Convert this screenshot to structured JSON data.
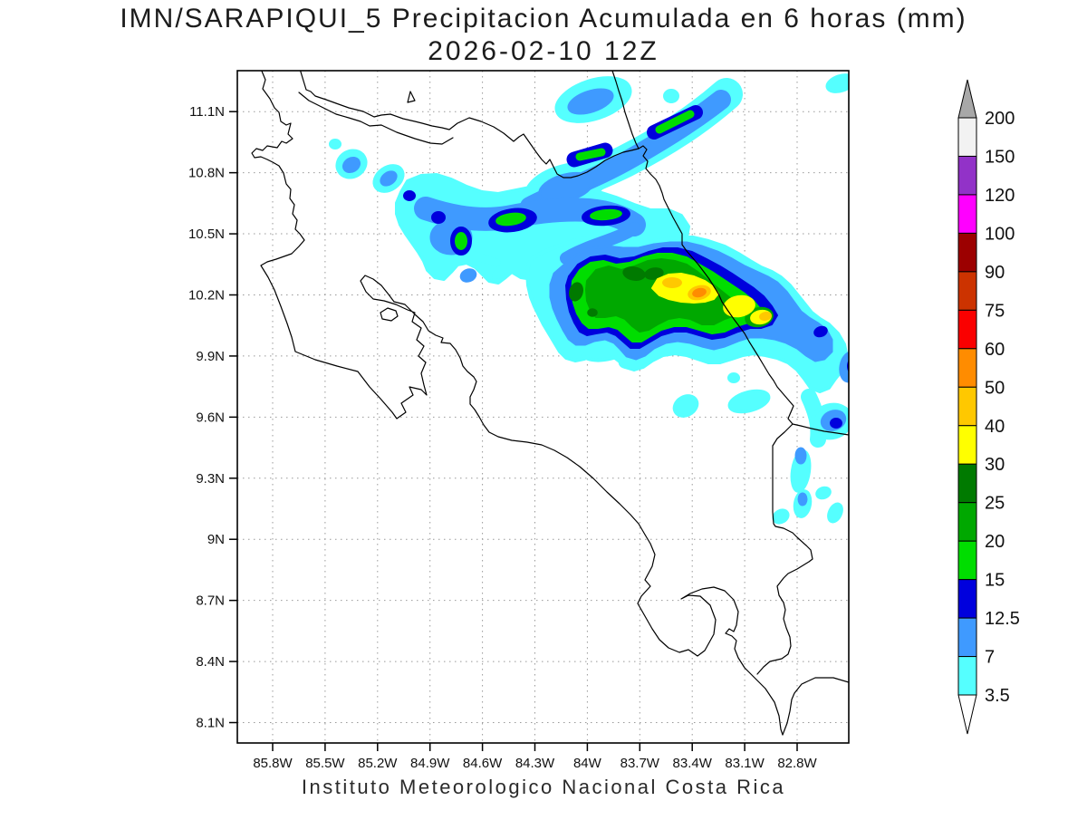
{
  "title": {
    "line1": "IMN/SARAPIQUI_5 Precipitacion Acumulada en 6 horas (mm)",
    "line2": "2026-02-10 12Z"
  },
  "footer": "Instituto Meteorologico Nacional Costa Rica",
  "axes": {
    "lat_ticks": [
      "11.1N",
      "10.8N",
      "10.5N",
      "10.2N",
      "9.9N",
      "9.6N",
      "9.3N",
      "9N",
      "8.7N",
      "8.4N",
      "8.1N"
    ],
    "lon_ticks": [
      "85.8W",
      "85.5W",
      "85.2W",
      "84.9W",
      "84.6W",
      "84.3W",
      "84W",
      "83.7W",
      "83.4W",
      "83.1W",
      "82.8W"
    ]
  },
  "colorbar": {
    "boundary_labels": [
      "200",
      "150",
      "120",
      "100",
      "90",
      "75",
      "60",
      "50",
      "40",
      "30",
      "25",
      "20",
      "15",
      "12.5",
      "7",
      "3.5"
    ],
    "segment_colors_top_to_bottom": [
      "#f2f2f2",
      "#9232c8",
      "#ff00ff",
      "#9c0000",
      "#cc3300",
      "#fa0000",
      "#ff8c00",
      "#ffc800",
      "#ffff00",
      "#007a00",
      "#00a800",
      "#00dd00",
      "#0000dd",
      "#3f9aff",
      "#55ffff"
    ],
    "arrow_top_color": "#a8a8a8",
    "arrow_bottom_color": "#ffffff"
  },
  "chart_data": {
    "type": "filled_contour_map",
    "variable": "Accumulated precipitation in 6 hours",
    "units": "mm",
    "model_run": "2026-02-10 12Z",
    "source_label": "IMN/SARAPIQUI_5",
    "region": "Costa Rica and southern Nicaragua / western Panama",
    "lon_range_deg_west": [
      86.0,
      82.5
    ],
    "lat_range_deg_north": [
      8.0,
      11.32
    ],
    "grid": {
      "lat_interval_deg": 0.3,
      "lon_interval_deg": 0.3,
      "style": "dotted gray"
    },
    "contour_levels_mm": [
      3.5,
      7,
      12.5,
      15,
      20,
      25,
      30,
      40,
      50,
      60,
      75,
      90,
      100,
      120,
      150,
      200
    ],
    "palette_mm_to_color": {
      "3.5-7": "#55ffff",
      "7-12.5": "#3f9aff",
      "12.5-15": "#0000dd",
      "15-20": "#00dd00",
      "20-25": "#00a800",
      "25-30": "#007a00",
      "30-40": "#ffff00",
      "40-50": "#ffc800",
      "50-60": "#ff8c00",
      "60-75": "#fa0000",
      "75-90": "#cc3300",
      "90-100": "#9c0000",
      "100-120": "#ff00ff",
      "120-150": "#9232c8",
      "150-200": "#f2f2f2"
    },
    "precipitation_features": [
      {
        "name": "main convective complex",
        "approx_center": "83.4W 10.2N",
        "max_band_mm": "50-60",
        "notes": "large green area 15-30 mm with yellow 30-40, gold 40-50 and a small orange 50-60 core near the Caribbean coast SE of Limon"
      },
      {
        "name": "NE diagonal band",
        "approx_center": "83.9W 10.95N",
        "max_band_mm": "15-20",
        "notes": "narrow SW-NE band with two small 15-20 mm green slivers inside 12.5-15 mm dark blue cores"
      },
      {
        "name": "central band",
        "approx_center": "84.4W 10.55N",
        "max_band_mm": "15-20",
        "notes": "elongated band with green slivers near 84.55W and 84.0W and a small green dot near 84.7W 10.45N"
      },
      {
        "name": "western spots",
        "approx_center": "85.35W 10.8N",
        "max_band_mm": "7-12.5",
        "notes": "two small cyan/blue spots"
      },
      {
        "name": "coastal streaks",
        "approx_center": "82.9W 9.6N",
        "max_band_mm": "12.5-15",
        "notes": "cyan/blue streaks along south Caribbean coast"
      }
    ],
    "legend_position": "right vertical colorbar with overflow arrows",
    "coastline_color": "#000000"
  }
}
